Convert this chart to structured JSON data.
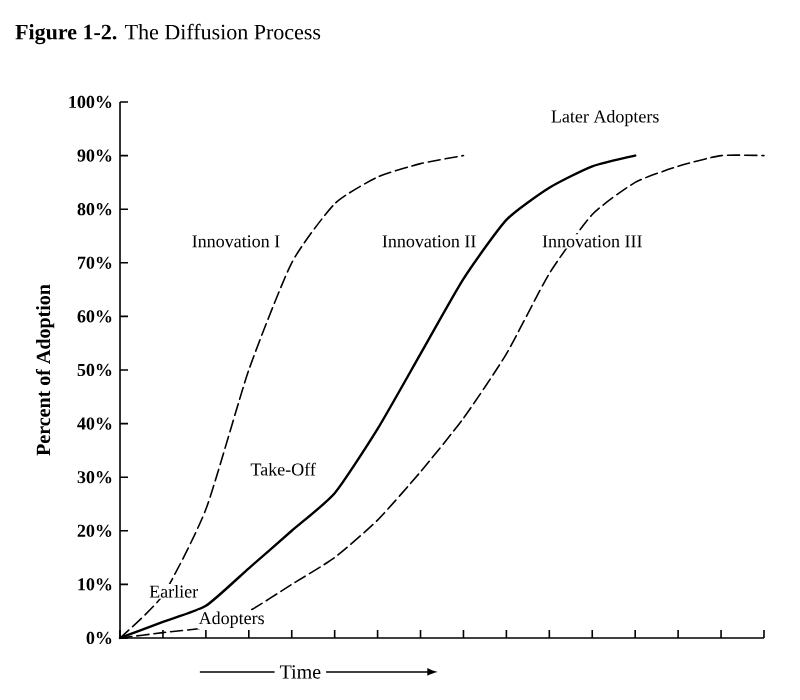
{
  "chart_data": {
    "type": "line",
    "title": "**Figure 1-2.** The Diffusion Process",
    "xlabel": "Time",
    "ylabel": "Percent of Adoption",
    "categories": [
      null,
      null,
      null,
      null,
      null,
      null,
      null,
      null,
      null,
      null,
      null,
      null,
      null,
      null,
      null,
      null
    ],
    "series": [
      {
        "name": "Innovation I",
        "color": "#000000",
        "line_style": "dashed",
        "values": [
          0,
          8,
          24,
          50,
          70,
          81,
          86,
          88.5,
          90,
          null,
          null,
          null,
          null,
          null,
          null,
          null
        ]
      },
      {
        "name": "Innovation II",
        "color": "#000000",
        "line_style": "solid",
        "values": [
          0,
          3,
          6,
          13,
          20,
          27,
          39,
          53,
          67,
          78,
          84,
          88,
          90,
          null,
          null,
          null
        ]
      },
      {
        "name": "Innovation III",
        "color": "#000000",
        "line_style": "dashed",
        "values": [
          0,
          1,
          2,
          5,
          10,
          15,
          22,
          31,
          41,
          53,
          68,
          79,
          85,
          88,
          90,
          90
        ]
      }
    ],
    "ylim": [
      0,
      100
    ],
    "yticks": [
      {
        "value": 0,
        "label": "0%"
      },
      {
        "value": 10,
        "label": "10%"
      },
      {
        "value": 20,
        "label": "20%"
      },
      {
        "value": 30,
        "label": "30%"
      },
      {
        "value": 40,
        "label": "40%"
      },
      {
        "value": 50,
        "label": "50%"
      },
      {
        "value": 60,
        "label": "60%"
      },
      {
        "value": 70,
        "label": "70%"
      },
      {
        "value": 80,
        "label": "80%"
      },
      {
        "value": 90,
        "label": "90%"
      },
      {
        "value": 100,
        "label": "100%"
      }
    ],
    "annotations": [
      "Later Adopters",
      "Take-Off",
      "Earlier",
      "Adopters"
    ],
    "grid": false,
    "marker": "none"
  }
}
